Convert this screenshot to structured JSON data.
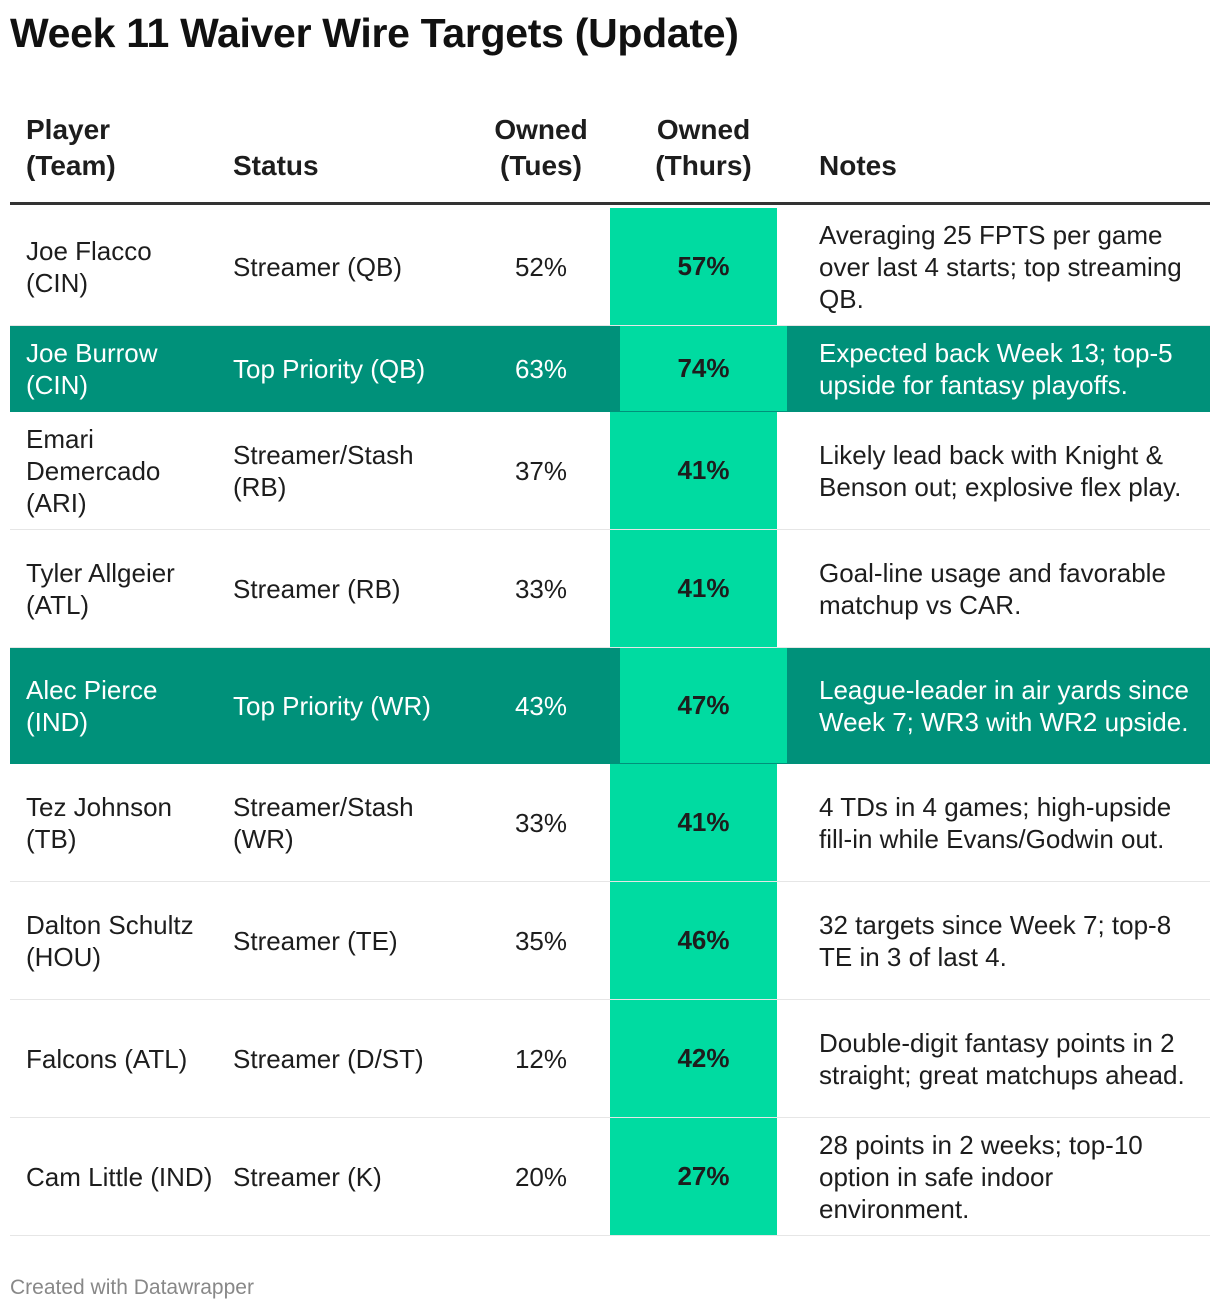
{
  "title": "Week 11 Waiver Wire Targets (Update)",
  "columns": {
    "player": "Player\n(Team)",
    "status": "Status",
    "tues": "Owned\n(Tues)",
    "thurs": "Owned\n(Thurs)",
    "notes": "Notes"
  },
  "rows": [
    {
      "player": "Joe Flacco (CIN)",
      "status": "Streamer (QB)",
      "tues": "52%",
      "thurs": "57%",
      "notes": "Averaging 25 FPTS per game over last 4 starts; top streaming QB.",
      "highlight": false
    },
    {
      "player": "Joe Burrow (CIN)",
      "status": "Top Priority (QB)",
      "tues": "63%",
      "thurs": "74%",
      "notes": "Expected back Week 13; top-5 upside for fantasy playoffs.",
      "highlight": true
    },
    {
      "player": "Emari Demercado (ARI)",
      "status": "Streamer/Stash (RB)",
      "tues": "37%",
      "thurs": "41%",
      "notes": "Likely lead back with Knight & Benson out; explosive flex play.",
      "highlight": false
    },
    {
      "player": "Tyler Allgeier (ATL)",
      "status": "Streamer (RB)",
      "tues": "33%",
      "thurs": "41%",
      "notes": "Goal-line usage and favorable matchup vs CAR.",
      "highlight": false
    },
    {
      "player": "Alec Pierce (IND)",
      "status": "Top Priority (WR)",
      "tues": "43%",
      "thurs": "47%",
      "notes": "League-leader in air yards since Week 7; WR3 with WR2 upside.",
      "highlight": true
    },
    {
      "player": "Tez Johnson (TB)",
      "status": "Streamer/Stash (WR)",
      "tues": "33%",
      "thurs": "41%",
      "notes": "4 TDs in 4 games; high-upside fill-in while Evans/Godwin out.",
      "highlight": false
    },
    {
      "player": "Dalton Schultz (HOU)",
      "status": "Streamer (TE)",
      "tues": "35%",
      "thurs": "46%",
      "notes": "32 targets since Week 7; top-8 TE in 3 of last 4.",
      "highlight": false
    },
    {
      "player": "Falcons (ATL)",
      "status": "Streamer (D/ST)",
      "tues": "12%",
      "thurs": "42%",
      "notes": "Double-digit fantasy points in 2 straight; great matchups ahead.",
      "highlight": false
    },
    {
      "player": "Cam Little (IND)",
      "status": "Streamer (K)",
      "tues": "20%",
      "thurs": "27%",
      "notes": "28 points in 2 weeks; top-10 option in safe indoor environment.",
      "highlight": false
    }
  ],
  "chart_data": {
    "type": "table",
    "columns": [
      "Player (Team)",
      "Status",
      "Owned (Tues)",
      "Owned (Thurs)",
      "Notes"
    ],
    "rows": [
      [
        "Joe Flacco (CIN)",
        "Streamer (QB)",
        "52%",
        "57%",
        "Averaging 25 FPTS per game over last 4 starts; top streaming QB."
      ],
      [
        "Joe Burrow (CIN)",
        "Top Priority (QB)",
        "63%",
        "74%",
        "Expected back Week 13; top-5 upside for fantasy playoffs."
      ],
      [
        "Emari Demercado (ARI)",
        "Streamer/Stash (RB)",
        "37%",
        "41%",
        "Likely lead back with Knight & Benson out; explosive flex play."
      ],
      [
        "Tyler Allgeier (ATL)",
        "Streamer (RB)",
        "33%",
        "41%",
        "Goal-line usage and favorable matchup vs CAR."
      ],
      [
        "Alec Pierce (IND)",
        "Top Priority (WR)",
        "43%",
        "47%",
        "League-leader in air yards since Week 7; WR3 with WR2 upside."
      ],
      [
        "Tez Johnson (TB)",
        "Streamer/Stash (WR)",
        "33%",
        "41%",
        "4 TDs in 4 games; high-upside fill-in while Evans/Godwin out."
      ],
      [
        "Dalton Schultz (HOU)",
        "Streamer (TE)",
        "35%",
        "46%",
        "32 targets since Week 7; top-8 TE in 3 of last 4."
      ],
      [
        "Falcons (ATL)",
        "Streamer (D/ST)",
        "12%",
        "42%",
        "Double-digit fantasy points in 2 straight; great matchups ahead."
      ],
      [
        "Cam Little (IND)",
        "Streamer (K)",
        "20%",
        "27%",
        "28 points in 2 weeks; top-10 option in safe indoor environment."
      ]
    ]
  },
  "colors": {
    "highlight_row": "#00917a",
    "thurs_column": "#00dba1",
    "text": "#1d1d1d"
  },
  "footer": "Created with Datawrapper"
}
